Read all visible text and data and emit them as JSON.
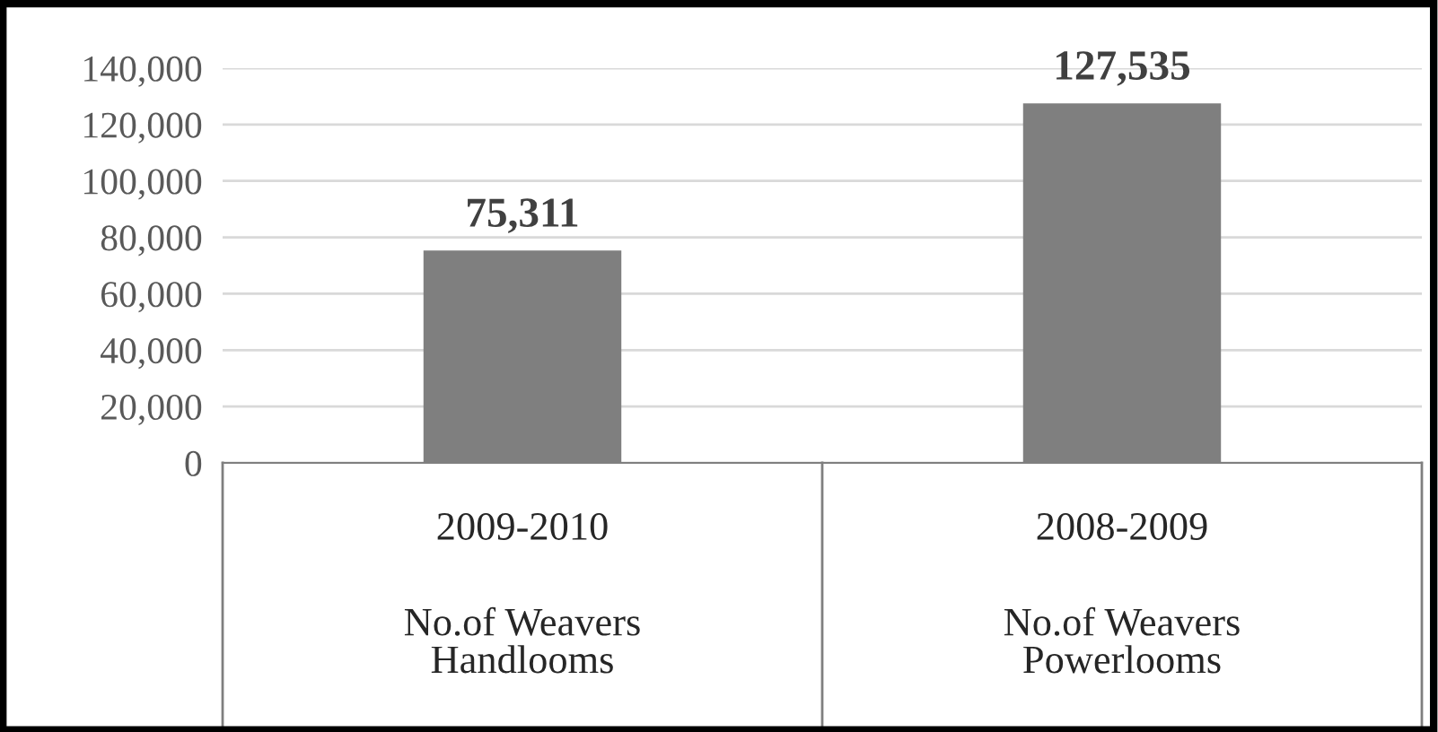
{
  "chart_data": {
    "type": "bar",
    "categories": [
      "2009-2010\nNo.of Weavers\nHandlooms",
      "2008-2009\nNo.of Weavers\nPowerlooms"
    ],
    "values": [
      75311,
      127535
    ],
    "value_labels": [
      "75,311",
      "127,535"
    ],
    "color": "#7f7f7f",
    "ylim": [
      0,
      140000
    ],
    "yticks": [
      {
        "value": 0,
        "label": "0"
      },
      {
        "value": 20000,
        "label": "20,000"
      },
      {
        "value": 40000,
        "label": "40,000"
      },
      {
        "value": 60000,
        "label": "60,000"
      },
      {
        "value": 80000,
        "label": "80,000"
      },
      {
        "value": 100000,
        "label": "100,000"
      },
      {
        "value": 120000,
        "label": "120,000"
      },
      {
        "value": 140000,
        "label": "140,000"
      }
    ],
    "grid": "y",
    "legend": false
  }
}
